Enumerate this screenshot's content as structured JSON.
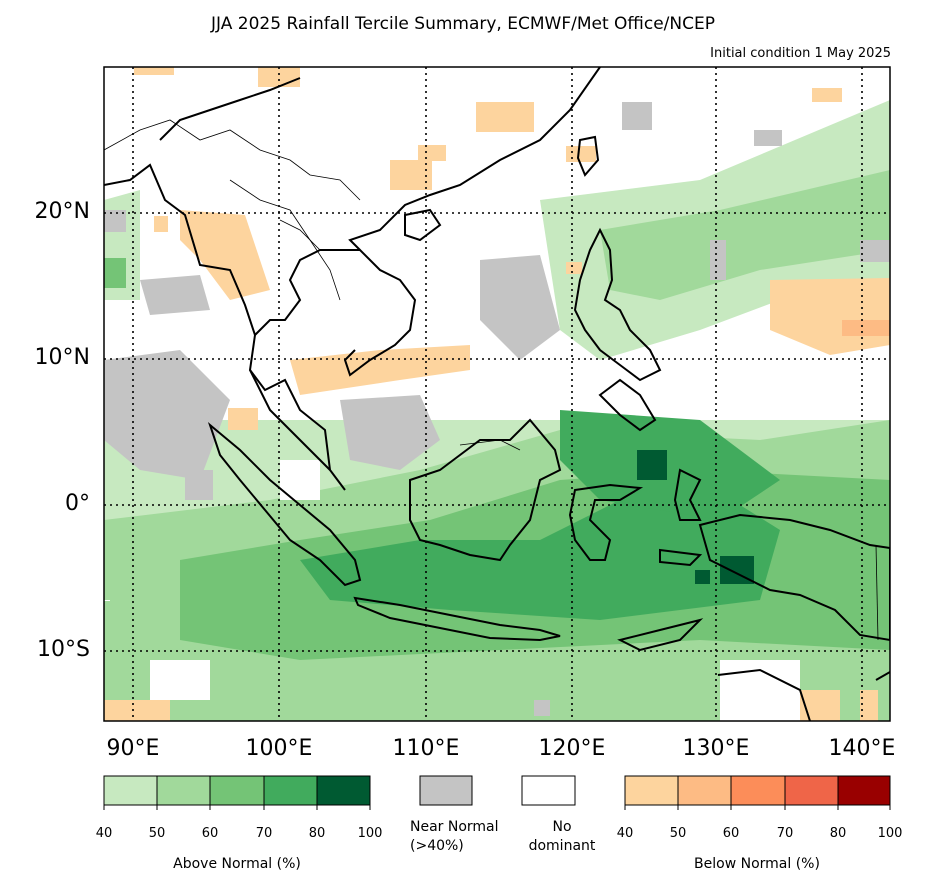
{
  "title": "JJA 2025 Rainfall Tercile Summary, ECMWF/Met Office/NCEP",
  "subtitle": "Initial condition 1 May 2025",
  "lat_labels": [
    "20°N",
    "10°N",
    "0°",
    "10°S"
  ],
  "lon_labels": [
    "90°E",
    "100°E",
    "110°E",
    "120°E",
    "130°E",
    "140°E"
  ],
  "colors": {
    "above": [
      "#c7e9c0",
      "#a1d99b",
      "#74c476",
      "#41ab5d",
      "#005a32"
    ],
    "near_normal": "#c4c4c4",
    "no_dominant": "#ffffff",
    "below": [
      "#fdd49e",
      "#fdbb84",
      "#fc8d59",
      "#ef6548",
      "#990000"
    ],
    "land_outline": "#000000"
  },
  "colorbars": {
    "above": {
      "ticks": [
        "40",
        "50",
        "60",
        "70",
        "80",
        "100"
      ],
      "label": "Above Normal (%)"
    },
    "near_normal": {
      "label": "Near Normal\n(>40%)"
    },
    "no_dominant": {
      "label": "No\ndominant"
    },
    "below": {
      "ticks": [
        "40",
        "50",
        "60",
        "70",
        "80",
        "100"
      ],
      "label": "Below Normal (%)"
    }
  }
}
